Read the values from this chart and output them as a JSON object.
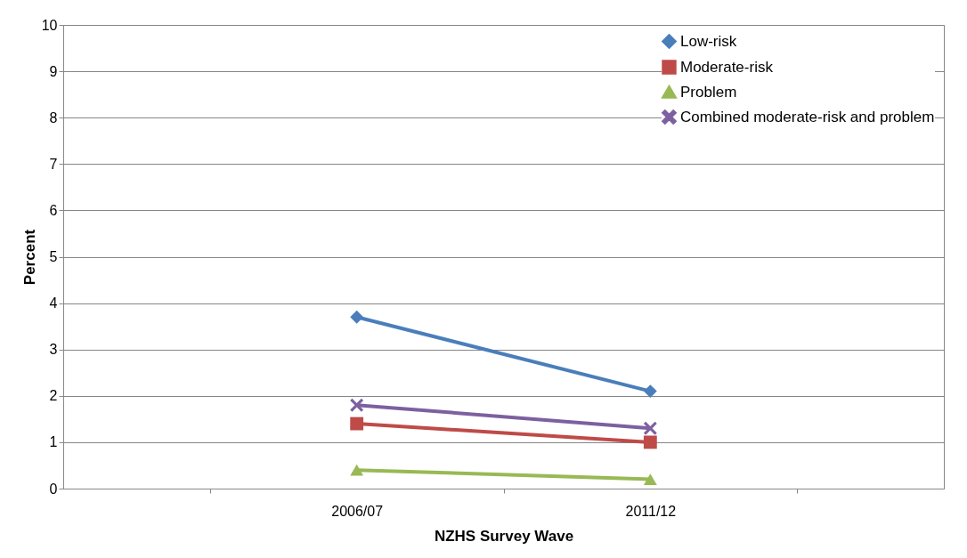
{
  "chart_data": {
    "type": "line",
    "xlabel": "NZHS Survey Wave",
    "ylabel": "Percent",
    "categories": [
      "2006/07",
      "2011/12"
    ],
    "series": [
      {
        "name": "Low-risk",
        "color": "#4a7ebb",
        "marker": "diamond",
        "values": [
          3.7,
          2.1
        ]
      },
      {
        "name": "Moderate-risk",
        "color": "#be4b48",
        "marker": "square",
        "values": [
          1.4,
          1.0
        ]
      },
      {
        "name": "Problem",
        "color": "#98b954",
        "marker": "triangle",
        "values": [
          0.4,
          0.2
        ]
      },
      {
        "name": "Combined moderate-risk and problem",
        "color": "#7d60a0",
        "marker": "cross",
        "values": [
          1.8,
          1.3
        ]
      }
    ],
    "ylim": [
      0,
      10
    ],
    "yticks": [
      0,
      1,
      2,
      3,
      4,
      5,
      6,
      7,
      8,
      9,
      10
    ],
    "grid": "y",
    "legend": "top right"
  }
}
